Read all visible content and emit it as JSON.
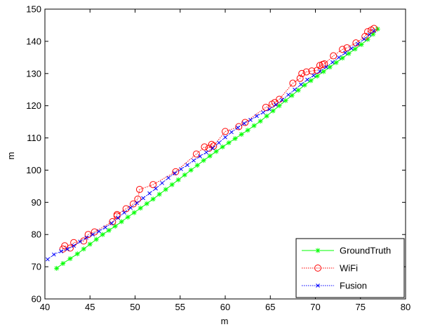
{
  "chart_data": {
    "type": "line",
    "title": "",
    "xlabel": "m",
    "ylabel": "m",
    "xlim": [
      40,
      80
    ],
    "ylim": [
      60,
      150
    ],
    "xticks": [
      "40",
      "45",
      "50",
      "55",
      "60",
      "65",
      "70",
      "75",
      "80"
    ],
    "yticks": [
      "60",
      "70",
      "80",
      "90",
      "100",
      "110",
      "120",
      "130",
      "140",
      "150"
    ],
    "grid": false,
    "legend_position": "bottom-right",
    "series": [
      {
        "name": "GroundTruth",
        "color": "#00ff00",
        "marker": "asterisk",
        "line": "solid",
        "points": [
          [
            41.3,
            69.5
          ],
          [
            42.0,
            71.0
          ],
          [
            42.8,
            72.5
          ],
          [
            43.6,
            74.0
          ],
          [
            44.3,
            75.5
          ],
          [
            45.0,
            77.0
          ],
          [
            45.7,
            78.5
          ],
          [
            46.4,
            80.0
          ],
          [
            47.1,
            81.3
          ],
          [
            47.8,
            82.6
          ],
          [
            48.5,
            84.0
          ],
          [
            49.2,
            85.4
          ],
          [
            49.9,
            86.8
          ],
          [
            50.6,
            88.2
          ],
          [
            51.3,
            89.6
          ],
          [
            52.0,
            91.0
          ],
          [
            52.7,
            92.5
          ],
          [
            53.4,
            94.0
          ],
          [
            54.1,
            95.5
          ],
          [
            54.8,
            97.0
          ],
          [
            55.5,
            98.5
          ],
          [
            56.2,
            100.0
          ],
          [
            56.9,
            101.5
          ],
          [
            57.6,
            103.0
          ],
          [
            58.3,
            104.4
          ],
          [
            59.0,
            105.8
          ],
          [
            59.7,
            107.2
          ],
          [
            60.4,
            108.5
          ],
          [
            61.1,
            109.8
          ],
          [
            61.8,
            111.1
          ],
          [
            62.5,
            112.4
          ],
          [
            63.2,
            113.8
          ],
          [
            63.9,
            115.2
          ],
          [
            64.6,
            116.8
          ],
          [
            65.3,
            118.4
          ],
          [
            66.0,
            120.0
          ],
          [
            66.7,
            121.6
          ],
          [
            67.4,
            123.2
          ],
          [
            68.1,
            124.8
          ],
          [
            68.8,
            126.4
          ],
          [
            69.5,
            127.8
          ],
          [
            70.2,
            129.2
          ],
          [
            70.9,
            130.6
          ],
          [
            71.6,
            132.0
          ],
          [
            72.3,
            133.4
          ],
          [
            73.0,
            134.8
          ],
          [
            73.7,
            136.2
          ],
          [
            74.4,
            137.6
          ],
          [
            75.1,
            139.0
          ],
          [
            75.8,
            140.6
          ],
          [
            76.4,
            142.2
          ],
          [
            76.9,
            143.8
          ]
        ]
      },
      {
        "name": "WiFi",
        "color": "#ff0000",
        "marker": "circle",
        "line": "dotted",
        "points": [
          [
            42.0,
            75.5
          ],
          [
            42.2,
            76.5
          ],
          [
            42.8,
            75.8
          ],
          [
            43.2,
            77.5
          ],
          [
            44.3,
            78.0
          ],
          [
            44.8,
            80.0
          ],
          [
            45.5,
            80.8
          ],
          [
            47.5,
            84.0
          ],
          [
            48.0,
            85.8
          ],
          [
            48.0,
            86.2
          ],
          [
            49.0,
            88.0
          ],
          [
            49.8,
            89.5
          ],
          [
            50.3,
            91.0
          ],
          [
            50.5,
            94.0
          ],
          [
            52.0,
            95.5
          ],
          [
            54.5,
            99.5
          ],
          [
            56.8,
            105.0
          ],
          [
            57.7,
            107.2
          ],
          [
            58.2,
            106.8
          ],
          [
            58.5,
            108.0
          ],
          [
            58.7,
            107.5
          ],
          [
            60.0,
            112.0
          ],
          [
            61.5,
            113.5
          ],
          [
            62.2,
            114.8
          ],
          [
            64.5,
            119.5
          ],
          [
            65.2,
            120.5
          ],
          [
            65.5,
            121.0
          ],
          [
            66.0,
            122.0
          ],
          [
            67.5,
            127.0
          ],
          [
            68.3,
            128.5
          ],
          [
            68.5,
            130.0
          ],
          [
            69.0,
            130.5
          ],
          [
            69.6,
            130.8
          ],
          [
            70.2,
            131.0
          ],
          [
            70.5,
            132.5
          ],
          [
            70.8,
            132.8
          ],
          [
            71.0,
            133.0
          ],
          [
            72.0,
            135.5
          ],
          [
            73.0,
            137.5
          ],
          [
            73.5,
            138.0
          ],
          [
            74.5,
            139.5
          ],
          [
            75.5,
            141.5
          ],
          [
            75.8,
            143.0
          ],
          [
            76.2,
            143.5
          ],
          [
            76.5,
            144.0
          ]
        ]
      },
      {
        "name": "Fusion",
        "color": "#0000ff",
        "marker": "x",
        "line": "dotted",
        "points": [
          [
            40.3,
            72.3
          ],
          [
            41.0,
            73.8
          ],
          [
            41.8,
            74.8
          ],
          [
            42.5,
            75.5
          ],
          [
            43.2,
            76.5
          ],
          [
            43.9,
            77.8
          ],
          [
            44.6,
            79.0
          ],
          [
            45.3,
            80.0
          ],
          [
            46.0,
            81.0
          ],
          [
            46.7,
            82.2
          ],
          [
            47.4,
            83.5
          ],
          [
            48.1,
            85.2
          ],
          [
            48.8,
            86.8
          ],
          [
            49.5,
            88.3
          ],
          [
            50.2,
            89.8
          ],
          [
            50.9,
            91.3
          ],
          [
            51.6,
            92.8
          ],
          [
            52.3,
            94.3
          ],
          [
            53.0,
            96.0
          ],
          [
            53.7,
            97.6
          ],
          [
            54.4,
            99.0
          ],
          [
            55.1,
            100.3
          ],
          [
            55.8,
            101.6
          ],
          [
            56.5,
            103.0
          ],
          [
            57.2,
            104.3
          ],
          [
            57.9,
            105.5
          ],
          [
            58.6,
            106.8
          ],
          [
            59.3,
            108.5
          ],
          [
            60.0,
            110.2
          ],
          [
            60.7,
            111.8
          ],
          [
            61.4,
            113.2
          ],
          [
            62.1,
            114.5
          ],
          [
            62.8,
            115.6
          ],
          [
            63.5,
            116.8
          ],
          [
            64.2,
            117.9
          ],
          [
            64.9,
            118.9
          ],
          [
            65.6,
            120.3
          ],
          [
            66.3,
            121.8
          ],
          [
            67.0,
            123.4
          ],
          [
            67.7,
            125.0
          ],
          [
            68.4,
            126.6
          ],
          [
            69.1,
            128.1
          ],
          [
            69.8,
            129.4
          ],
          [
            70.5,
            130.7
          ],
          [
            71.2,
            132.0
          ],
          [
            71.9,
            133.5
          ],
          [
            72.6,
            135.0
          ],
          [
            73.3,
            136.4
          ],
          [
            74.0,
            137.8
          ],
          [
            74.7,
            139.2
          ],
          [
            75.4,
            140.7
          ],
          [
            76.0,
            142.1
          ],
          [
            76.5,
            143.2
          ]
        ]
      }
    ]
  }
}
